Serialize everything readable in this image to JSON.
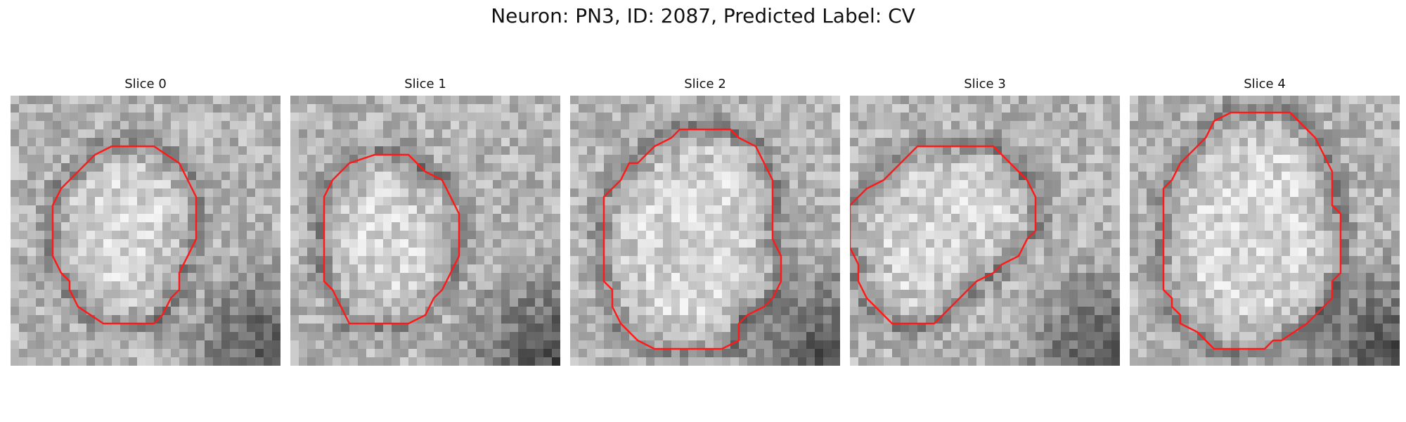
{
  "figure": {
    "suptitle": "Neuron: PN3, ID: 2087, Predicted Label: CV"
  },
  "panels": [
    {
      "title": "Slice 0",
      "seed": 11,
      "dark_corner": "bottom-right",
      "contour": [
        [
          12,
          6
        ],
        [
          17,
          6
        ],
        [
          20,
          8
        ],
        [
          21,
          10
        ],
        [
          22,
          12
        ],
        [
          22,
          17
        ],
        [
          21,
          19
        ],
        [
          20,
          21
        ],
        [
          20,
          23
        ],
        [
          19,
          24
        ],
        [
          18,
          26
        ],
        [
          17,
          27
        ],
        [
          11,
          27
        ],
        [
          8,
          25
        ],
        [
          7,
          23
        ],
        [
          7,
          22
        ],
        [
          6,
          21
        ],
        [
          5,
          19
        ],
        [
          5,
          13
        ],
        [
          6,
          11
        ],
        [
          9,
          8
        ],
        [
          10,
          7
        ]
      ],
      "colors": {
        "outline": "#ff1a1a",
        "ring": "#737373"
      }
    },
    {
      "title": "Slice 1",
      "seed": 23,
      "dark_corner": "bottom-right",
      "contour": [
        [
          10,
          7
        ],
        [
          14,
          7
        ],
        [
          16,
          9
        ],
        [
          18,
          10
        ],
        [
          19,
          12
        ],
        [
          20,
          14
        ],
        [
          20,
          19
        ],
        [
          19,
          21
        ],
        [
          18,
          23
        ],
        [
          17,
          24
        ],
        [
          16,
          26
        ],
        [
          14,
          27
        ],
        [
          7,
          27
        ],
        [
          6,
          25
        ],
        [
          5,
          23
        ],
        [
          4,
          22
        ],
        [
          4,
          12
        ],
        [
          5,
          10
        ],
        [
          7,
          8
        ]
      ],
      "colors": {
        "outline": "#ff1a1a",
        "ring": "#6e6e6e"
      }
    },
    {
      "title": "Slice 2",
      "seed": 37,
      "dark_corner": "bottom-right",
      "contour": [
        [
          13,
          4
        ],
        [
          19,
          4
        ],
        [
          20,
          5
        ],
        [
          22,
          6
        ],
        [
          23,
          8
        ],
        [
          24,
          10
        ],
        [
          24,
          17
        ],
        [
          25,
          19
        ],
        [
          25,
          22
        ],
        [
          24,
          24
        ],
        [
          23,
          25
        ],
        [
          21,
          26
        ],
        [
          20,
          27
        ],
        [
          20,
          29
        ],
        [
          18,
          30
        ],
        [
          10,
          30
        ],
        [
          8,
          29
        ],
        [
          6,
          27
        ],
        [
          5,
          25
        ],
        [
          5,
          23
        ],
        [
          4,
          22
        ],
        [
          4,
          12
        ],
        [
          5,
          11
        ],
        [
          6,
          10
        ],
        [
          7,
          8
        ],
        [
          8,
          8
        ],
        [
          10,
          6
        ],
        [
          12,
          5
        ]
      ],
      "colors": {
        "outline": "#ff1a1a",
        "ring": "#777777"
      }
    },
    {
      "title": "Slice 3",
      "seed": 51,
      "dark_corner": "bottom-right",
      "contour": [
        [
          10,
          6
        ],
        [
          17,
          6
        ],
        [
          18,
          7
        ],
        [
          19,
          8
        ],
        [
          21,
          10
        ],
        [
          22,
          12
        ],
        [
          22,
          16
        ],
        [
          21,
          17
        ],
        [
          20,
          19
        ],
        [
          18,
          20
        ],
        [
          17,
          21
        ],
        [
          15,
          22
        ],
        [
          14,
          23
        ],
        [
          13,
          24
        ],
        [
          12,
          25
        ],
        [
          10,
          27
        ],
        [
          9,
          27
        ],
        [
          5,
          27
        ],
        [
          3,
          25
        ],
        [
          2,
          24
        ],
        [
          1,
          22
        ],
        [
          1,
          20
        ],
        [
          0,
          18
        ],
        [
          0,
          13
        ],
        [
          2,
          11
        ],
        [
          4,
          10
        ],
        [
          6,
          8
        ],
        [
          8,
          6
        ]
      ],
      "colors": {
        "outline": "#ff1a1a",
        "ring": "#707070"
      }
    },
    {
      "title": "Slice 4",
      "seed": 77,
      "dark_corner": "bottom-right",
      "contour": [
        [
          13,
          2
        ],
        [
          19,
          2
        ],
        [
          20,
          3
        ],
        [
          21,
          4
        ],
        [
          22,
          5
        ],
        [
          23,
          7
        ],
        [
          24,
          9
        ],
        [
          24,
          13
        ],
        [
          25,
          14
        ],
        [
          25,
          21
        ],
        [
          24,
          22
        ],
        [
          24,
          24
        ],
        [
          23,
          25
        ],
        [
          21,
          27
        ],
        [
          18,
          29
        ],
        [
          17,
          29
        ],
        [
          16,
          30
        ],
        [
          10,
          30
        ],
        [
          8,
          28
        ],
        [
          6,
          27
        ],
        [
          6,
          26
        ],
        [
          5,
          25
        ],
        [
          5,
          24
        ],
        [
          4,
          23
        ],
        [
          4,
          11
        ],
        [
          5,
          10
        ],
        [
          6,
          8
        ],
        [
          7,
          7
        ],
        [
          8,
          6
        ],
        [
          9,
          5
        ],
        [
          10,
          3
        ],
        [
          12,
          2
        ]
      ],
      "colors": {
        "outline": "#ff1a1a",
        "ring": "#5e5e5e"
      }
    }
  ]
}
